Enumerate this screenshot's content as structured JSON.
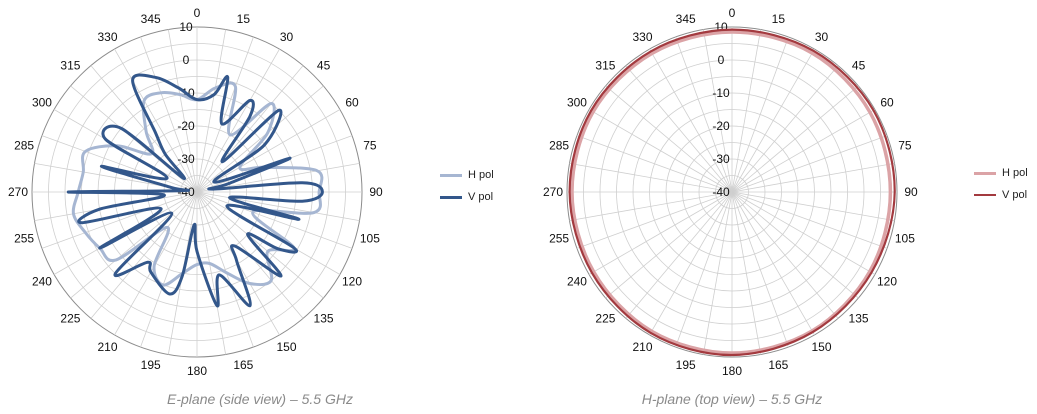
{
  "chart_data": [
    {
      "type": "polar",
      "caption": "E-plane (side view) – 5.5 GHz",
      "angle_ticks": [
        0,
        15,
        30,
        45,
        60,
        75,
        90,
        105,
        120,
        135,
        150,
        165,
        180,
        195,
        210,
        225,
        240,
        255,
        270,
        285,
        300,
        315,
        330,
        345
      ],
      "radial_labels": [
        10,
        0,
        -10,
        -20,
        -30,
        -40
      ],
      "r_range": [
        -40,
        10
      ],
      "grid": true,
      "legend_position": "right",
      "series": [
        {
          "name": "H pol",
          "color": "#a6b6d2",
          "angles": [
            0,
            10,
            20,
            30,
            40,
            50,
            60,
            70,
            80,
            90,
            100,
            110,
            120,
            130,
            140,
            150,
            160,
            170,
            180,
            190,
            200,
            210,
            220,
            230,
            240,
            250,
            260,
            270,
            280,
            290,
            300,
            310,
            320,
            330,
            340,
            350,
            360
          ],
          "values": [
            -12,
            -8,
            -6,
            -20,
            -5,
            -12,
            -25,
            -18,
            -3,
            -3,
            -4,
            -22,
            -6,
            -12,
            -5,
            -8,
            -14,
            -18,
            -18,
            -15,
            -10,
            -14,
            -26,
            -8,
            -6,
            -4,
            -2,
            -4,
            -5,
            -4,
            -12,
            -22,
            -16,
            -8,
            -8,
            -10,
            -12
          ]
        },
        {
          "name": "V pol",
          "color": "#33578b",
          "angles": [
            0,
            10,
            15,
            20,
            30,
            35,
            40,
            45,
            55,
            60,
            70,
            75,
            80,
            85,
            90,
            95,
            100,
            105,
            115,
            120,
            125,
            130,
            135,
            145,
            150,
            155,
            165,
            170,
            180,
            185,
            190,
            195,
            210,
            215,
            225,
            230,
            240,
            245,
            255,
            260,
            265,
            270,
            275,
            280,
            285,
            295,
            300,
            310,
            315,
            320,
            325,
            330,
            340,
            350,
            360
          ],
          "values": [
            -12,
            -10,
            -4,
            -18,
            -8,
            -12,
            -28,
            -5,
            -15,
            -34,
            -10,
            -30,
            -35,
            -8,
            -2,
            -8,
            -30,
            -8,
            -30,
            -6,
            -10,
            -20,
            -4,
            -20,
            -16,
            -2,
            -14,
            -5,
            -22,
            -30,
            -14,
            -8,
            -12,
            -14,
            -5,
            -30,
            -6,
            -28,
            -4,
            -10,
            -30,
            -1,
            -35,
            -32,
            -10,
            -30,
            -8,
            -10,
            -34,
            -25,
            -18,
            -1,
            -3,
            -8,
            -12
          ]
        }
      ]
    },
    {
      "type": "polar",
      "caption": "H-plane (top view) – 5.5 GHz",
      "angle_ticks": [
        0,
        15,
        30,
        45,
        60,
        75,
        90,
        105,
        120,
        135,
        150,
        165,
        180,
        195,
        210,
        225,
        240,
        255,
        270,
        285,
        300,
        315,
        330,
        345
      ],
      "radial_labels": [
        10,
        0,
        -10,
        -20,
        -30,
        -40
      ],
      "r_range": [
        -40,
        10
      ],
      "grid": true,
      "legend_position": "right",
      "series": [
        {
          "name": "H pol",
          "color": "#dba3a6",
          "angles": [
            0,
            30,
            60,
            90,
            120,
            150,
            180,
            210,
            240,
            270,
            300,
            330,
            360
          ],
          "values": [
            8.5,
            8.6,
            8.3,
            8.0,
            8.2,
            8.6,
            8.8,
            8.7,
            8.4,
            8.5,
            8.6,
            8.5,
            8.5
          ]
        },
        {
          "name": "V pol",
          "color": "#a33a3f",
          "angles": [
            0,
            30,
            60,
            90,
            120,
            150,
            180,
            210,
            240,
            270,
            300,
            330,
            360
          ],
          "values": [
            9.2,
            9.4,
            9.5,
            9.3,
            8.8,
            9.0,
            9.4,
            9.3,
            9.0,
            9.2,
            9.3,
            9.2,
            9.2
          ]
        }
      ]
    }
  ]
}
